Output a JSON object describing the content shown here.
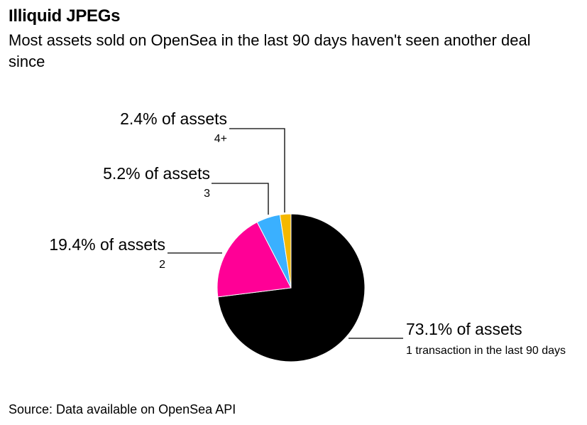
{
  "chart_data": {
    "type": "pie",
    "title": "Illiquid JPEGs",
    "subtitle": "Most assets sold on OpenSea in the last 90 days haven't seen another deal since",
    "slices": [
      {
        "label": "73.1% of assets",
        "value": 73.1,
        "sublabel": "1 transaction in the last 90 days",
        "color": "#000000"
      },
      {
        "label": "19.4% of assets",
        "value": 19.4,
        "sublabel": "2",
        "color": "#ff0096"
      },
      {
        "label": "5.2% of assets",
        "value": 5.2,
        "sublabel": "3",
        "color": "#3ab0ff"
      },
      {
        "label": "2.4% of assets",
        "value": 2.4,
        "sublabel": "4+",
        "color": "#f5b800"
      }
    ],
    "source": "Source: Data available on OpenSea API"
  }
}
